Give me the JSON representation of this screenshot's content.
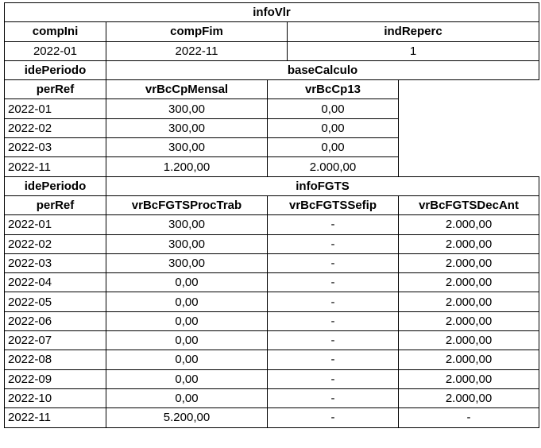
{
  "infoVlr": {
    "title": "infoVlr",
    "headers": [
      "compIni",
      "compFim",
      "indReperc"
    ],
    "values": [
      "2022-01",
      "2022-11",
      "1"
    ]
  },
  "baseCalculo": {
    "group_label": "idePeriodo",
    "title": "baseCalculo",
    "headers": [
      "perRef",
      "vrBcCpMensal",
      "vrBcCp13"
    ],
    "rows": [
      [
        "2022-01",
        "300,00",
        "0,00"
      ],
      [
        "2022-02",
        "300,00",
        "0,00"
      ],
      [
        "2022-03",
        "300,00",
        "0,00"
      ],
      [
        "2022-11",
        "1.200,00",
        "2.000,00"
      ]
    ]
  },
  "infoFGTS": {
    "group_label": "idePeriodo",
    "title": "infoFGTS",
    "headers": [
      "perRef",
      "vrBcFGTSProcTrab",
      "vrBcFGTSSefip",
      "vrBcFGTSDecAnt"
    ],
    "rows": [
      [
        "2022-01",
        "300,00",
        "-",
        "2.000,00"
      ],
      [
        "2022-02",
        "300,00",
        "-",
        "2.000,00"
      ],
      [
        "2022-03",
        "300,00",
        "-",
        "2.000,00"
      ],
      [
        "2022-04",
        "0,00",
        "-",
        "2.000,00"
      ],
      [
        "2022-05",
        "0,00",
        "-",
        "2.000,00"
      ],
      [
        "2022-06",
        "0,00",
        "-",
        "2.000,00"
      ],
      [
        "2022-07",
        "0,00",
        "-",
        "2.000,00"
      ],
      [
        "2022-08",
        "0,00",
        "-",
        "2.000,00"
      ],
      [
        "2022-09",
        "0,00",
        "-",
        "2.000,00"
      ],
      [
        "2022-10",
        "0,00",
        "-",
        "2.000,00"
      ],
      [
        "2022-11",
        "5.200,00",
        "-",
        "-"
      ]
    ]
  }
}
